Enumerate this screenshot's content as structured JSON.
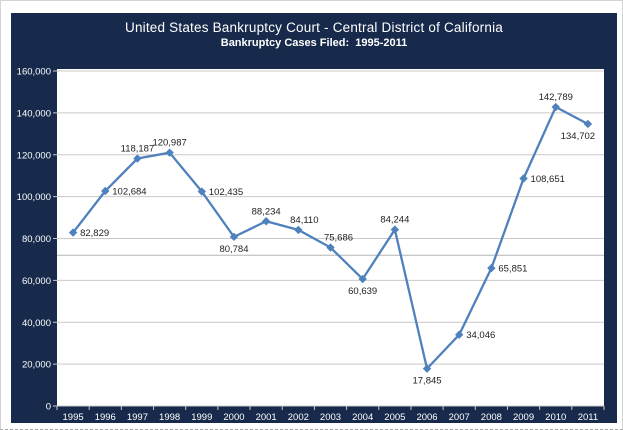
{
  "chart_data": {
    "type": "line",
    "title": "United States Bankruptcy Court - Central District of California",
    "subtitle": "Bankruptcy Cases Filed:  1995-2011",
    "categories": [
      "1995",
      "1996",
      "1997",
      "1998",
      "1999",
      "2000",
      "2001",
      "2002",
      "2003",
      "2004",
      "2005",
      "2006",
      "2007",
      "2008",
      "2009",
      "2010",
      "2011"
    ],
    "values": [
      82829,
      102684,
      118187,
      120987,
      102435,
      80784,
      88234,
      84110,
      75686,
      60639,
      84244,
      17845,
      34046,
      65851,
      108651,
      142789,
      134702
    ],
    "data_labels": [
      "82,829",
      "102,684",
      "118,187",
      "120,987",
      "102,435",
      "80,784",
      "88,234",
      "84,110",
      "75,686",
      "60,639",
      "84,244",
      "17,845",
      "34,046",
      "65,851",
      "108,651",
      "142,789",
      "134,702"
    ],
    "label_pos": [
      "right",
      "right",
      "above",
      "above",
      "right",
      "below",
      "above",
      "above",
      "above",
      "below",
      "above",
      "below",
      "right",
      "right",
      "right",
      "above",
      "below"
    ],
    "label_dx": [
      0,
      0,
      0,
      0,
      0,
      0,
      0,
      6,
      8,
      0,
      0,
      0,
      0,
      0,
      0,
      0,
      -10
    ],
    "xlabel": "",
    "ylabel": "",
    "ylim": [
      0,
      160000
    ],
    "ytick_interval": 20000,
    "ytick_labels": [
      "0",
      "20,000",
      "40,000",
      "60,000",
      "80,000",
      "100,000",
      "120,000",
      "140,000",
      "160,000"
    ],
    "reference_line_value": 72000,
    "grid": true,
    "legend": "none",
    "colors": {
      "background_navy": "#172A4C",
      "plot_background": "#FFFFFF",
      "line": "#4F81BD",
      "marker": "#4F81BD",
      "gridline": "#C9C9C9",
      "reference_line": "#B5B5B5",
      "data_label_text": "#1E1E1E",
      "axis_label_text": "#FFFFFF"
    }
  }
}
